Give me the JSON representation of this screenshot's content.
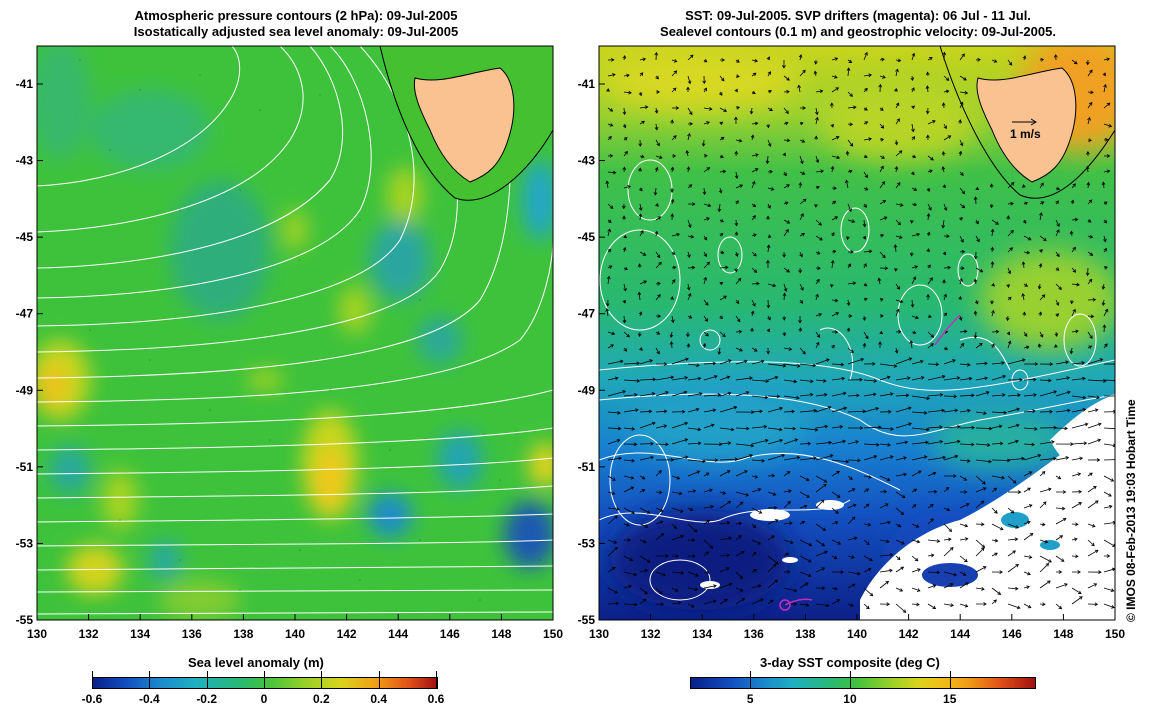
{
  "left_panel": {
    "title_line1": "Atmospheric pressure contours (2 hPa): 09-Jul-2005",
    "title_line2": "Isostatically adjusted sea level anomaly: 09-Jul-2005",
    "colorbar_title": "Sea level anomaly (m)",
    "colorbar_ticks": [
      "-0.6",
      "-0.4",
      "-0.2",
      "0",
      "0.2",
      "0.4",
      "0.6"
    ]
  },
  "right_panel": {
    "title_line1": "SST: 09-Jul-2005. SVP drifters (magenta): 06 Jul - 11 Jul.",
    "title_line2": "Sealevel contours (0.1 m) and geostrophic velocity: 09-Jul-2005.",
    "colorbar_title": "3-day SST composite (deg C)",
    "colorbar_ticks": [
      "5",
      "10",
      "15"
    ],
    "velocity_scale_label": "1 m/s"
  },
  "axes": {
    "lon_ticks": [
      "130",
      "132",
      "134",
      "136",
      "138",
      "140",
      "142",
      "144",
      "146",
      "148",
      "150"
    ],
    "lat_ticks": [
      "-41",
      "-43",
      "-45",
      "-47",
      "-49",
      "-51",
      "-53",
      "-55"
    ]
  },
  "credit": "© IMOS 08-Feb-2013 19:03 Hobart Time",
  "colors": {
    "land": "#f9c290",
    "contour": "#ffffff",
    "drifter": "#c030c0",
    "sla_base": "#3cc43c",
    "sst_warm": "#f0a020",
    "sst_cold": "#1030b0"
  }
}
